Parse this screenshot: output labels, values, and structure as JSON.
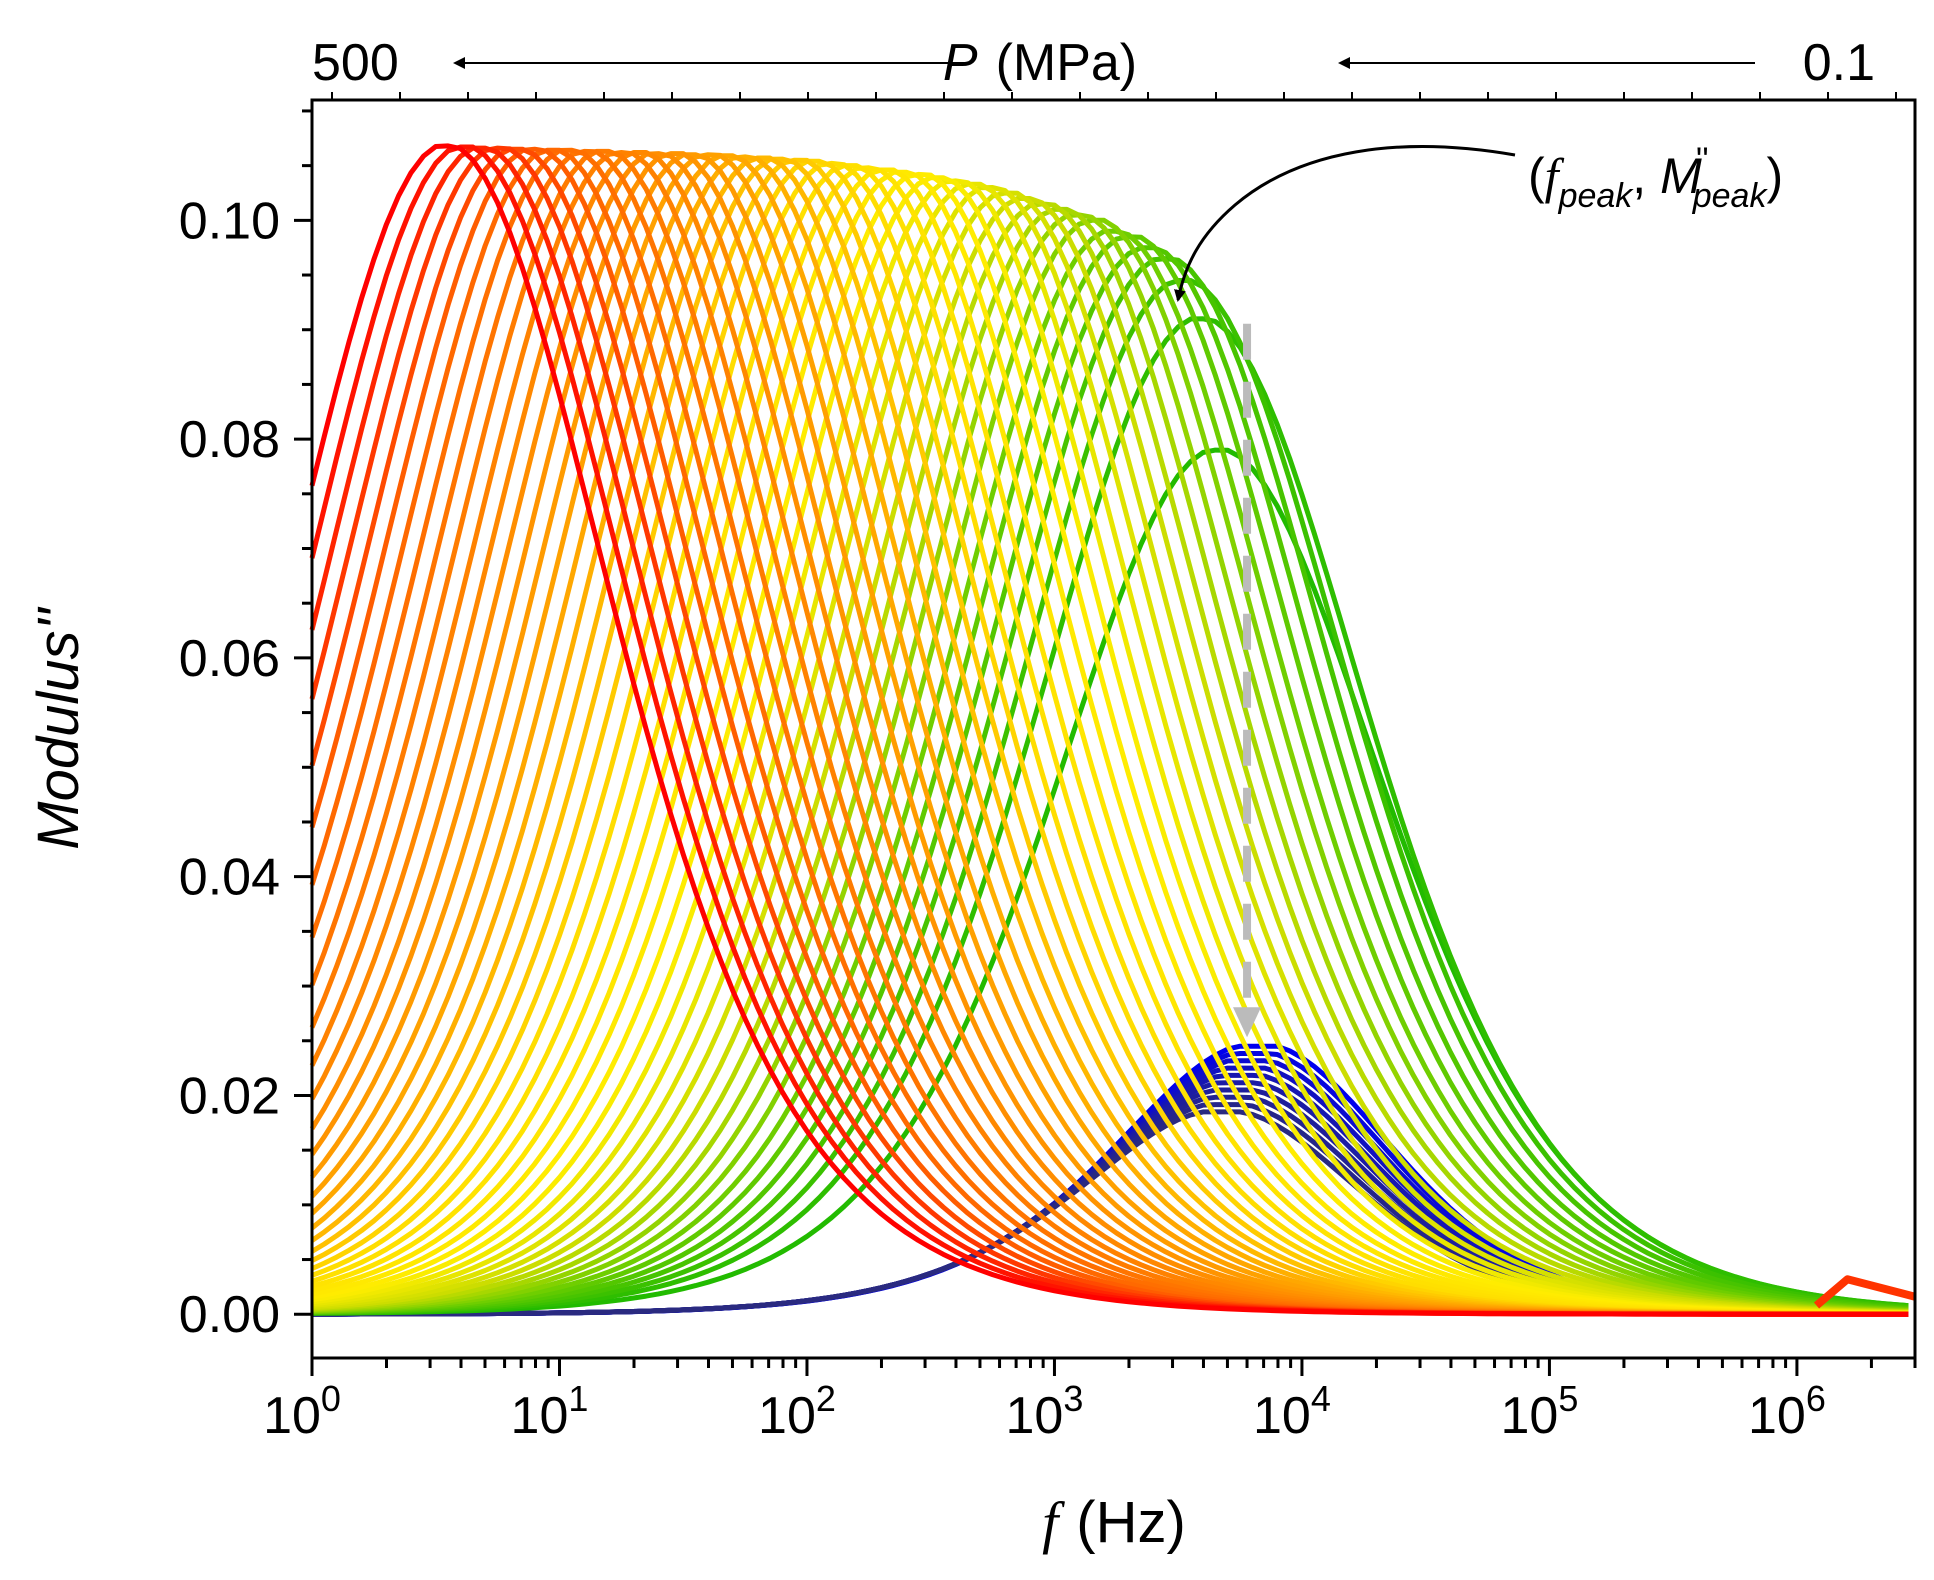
{
  "chart_data": {
    "type": "line",
    "title": "",
    "xlabel": {
      "symbol": "f",
      "unit": "(Hz)"
    },
    "ylabel": "Modulus''",
    "xscale": "log",
    "xlim": [
      1,
      3000000
    ],
    "ylim": [
      -0.004,
      0.111
    ],
    "x_ticks": [
      {
        "value": 1,
        "base": "10",
        "exp": "0"
      },
      {
        "value": 10,
        "base": "10",
        "exp": "1"
      },
      {
        "value": 100,
        "base": "10",
        "exp": "2"
      },
      {
        "value": 1000,
        "base": "10",
        "exp": "3"
      },
      {
        "value": 10000,
        "base": "10",
        "exp": "4"
      },
      {
        "value": 100000,
        "base": "10",
        "exp": "5"
      },
      {
        "value": 1000000,
        "base": "10",
        "exp": "6"
      }
    ],
    "y_ticks": [
      {
        "value": 0.0,
        "label": "0.00"
      },
      {
        "value": 0.02,
        "label": "0.02"
      },
      {
        "value": 0.04,
        "label": "0.04"
      },
      {
        "value": 0.06,
        "label": "0.06"
      },
      {
        "value": 0.08,
        "label": "0.08"
      },
      {
        "value": 0.1,
        "label": "0.10"
      }
    ],
    "pressure_axis": {
      "symbol": "P",
      "unit": "(MPa)",
      "left_value": "500",
      "right_value": "0.1"
    },
    "annotation": {
      "open": "(",
      "f": "f",
      "f_sub": "peak",
      "sep": ", ",
      "m": "M",
      "m_sup": "''",
      "m_sub": "peak",
      "close": ")",
      "arrow_target": {
        "f": 2900,
        "m": 0.091
      }
    },
    "peak_guide": {
      "f": 6000,
      "y_from": 0.091,
      "y_to": 0.0255,
      "color": "#bbbbbb"
    },
    "high_pressure_family": {
      "description": "green-yellow-orange-red curves, peak shifts to lower f as P increases",
      "count": 45,
      "peak_f_start": 4200,
      "peak_f_end": 3.2,
      "peak_m": [
        0.079,
        0.091,
        0.0945,
        0.0965,
        0.0975,
        0.0985,
        0.099,
        0.1,
        0.1005,
        0.101,
        0.1015,
        0.102,
        0.1025,
        0.103,
        0.1033,
        0.1036,
        0.1039,
        0.1042,
        0.1044,
        0.1046,
        0.1048,
        0.105,
        0.1052,
        0.1054,
        0.1055,
        0.1056,
        0.1057,
        0.1058,
        0.1059,
        0.106,
        0.106,
        0.1061,
        0.1061,
        0.1062,
        0.1062,
        0.1063,
        0.1063,
        0.1064,
        0.1064,
        0.1065,
        0.1065,
        0.1066,
        0.1066,
        0.1067,
        0.1068
      ],
      "colors": [
        "#22bb00",
        "#66cc00",
        "#ccdd00",
        "#ffee00",
        "#ffdd00",
        "#ffaa00",
        "#ff8800",
        "#ff6600",
        "#ff0000"
      ]
    },
    "low_pressure_family": {
      "description": "blue curves near the bottom, peak around 6e3-8e3 Hz",
      "count": 10,
      "peak_f_start": 8000,
      "peak_f_end": 5800,
      "peak_m_start": 0.0245,
      "peak_m_end": 0.0185,
      "colors": [
        "#0000ee",
        "#1a1aa8",
        "#2a2a80"
      ]
    },
    "artifact_f": 1600000
  }
}
